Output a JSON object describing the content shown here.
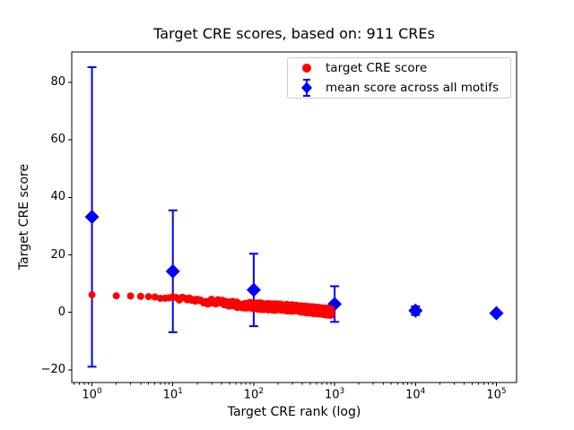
{
  "chart_data": {
    "type": "scatter",
    "title": "Target CRE scores, based on: 911 CREs",
    "xlabel": "Target CRE rank (log)",
    "ylabel": "Target CRE score",
    "x_scale": "log10",
    "x_log_limits": [
      -0.25,
      5.25
    ],
    "ylim": [
      -24.4,
      90.6
    ],
    "x_tick_base": "10",
    "x_major_tick_exponents": [
      0,
      1,
      2,
      3,
      4,
      5
    ],
    "y_ticks": [
      -20,
      0,
      20,
      40,
      60,
      80
    ],
    "y_tick_labels": [
      "−20",
      "0",
      "20",
      "40",
      "60",
      "80"
    ],
    "grid": false,
    "legend_position": "upper right",
    "series": [
      {
        "name": "target CRE score",
        "marker": "circle",
        "color": "#ff0000",
        "n_points": 911,
        "trend_log10rank_vs_score": [
          [
            0,
            6.1
          ],
          [
            0.301,
            5.8
          ],
          [
            0.477,
            5.7
          ],
          [
            0.602,
            5.6
          ],
          [
            0.699,
            5.5
          ],
          [
            1.0,
            4.9
          ],
          [
            1.5,
            3.6
          ],
          [
            2.0,
            2.3
          ],
          [
            2.5,
            1.45
          ],
          [
            2.96,
            0.1
          ]
        ],
        "jitter": {
          "base": 0.04,
          "ramp_start_log10": 0.845,
          "ramp_slope": 0.75,
          "max": 1.15
        }
      },
      {
        "name": "mean score across all motifs",
        "marker": "diamond",
        "color": "#0000ff",
        "points": [
          {
            "rank": 1,
            "mean": 33.2,
            "err": 52.1
          },
          {
            "rank": 10,
            "mean": 14.3,
            "err": 21.2
          },
          {
            "rank": 100,
            "mean": 7.8,
            "err": 12.6
          },
          {
            "rank": 1000,
            "mean": 2.9,
            "err": 6.2
          },
          {
            "rank": 10000,
            "mean": 0.6,
            "err": 1.5
          },
          {
            "rank": 100000,
            "mean": -0.3,
            "err": 0.7
          }
        ]
      }
    ]
  },
  "colors": {
    "red": "#ff0000",
    "blue": "#0000ff",
    "axis": "#000000",
    "legend_border": "#cccccc",
    "background": "#ffffff"
  }
}
